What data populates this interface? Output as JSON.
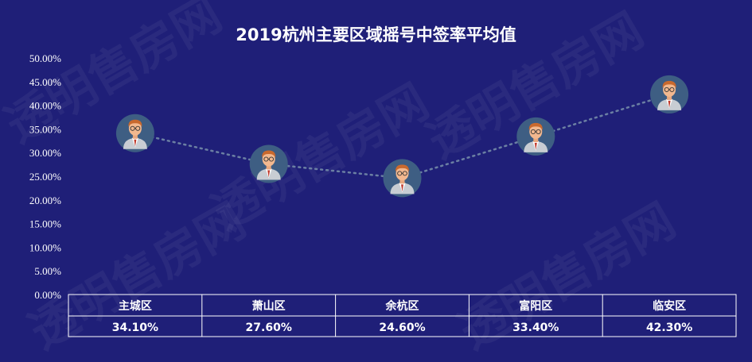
{
  "watermark": "透明售房网",
  "colors": {
    "background": "#1f1f78",
    "text": "#ffffff",
    "line": "#6b7fa3",
    "marker_bg": "#3e5e83"
  },
  "chart_data": {
    "type": "line",
    "title": "2019杭州主要区域摇号中签率平均值",
    "categories": [
      "主城区",
      "萧山区",
      "余杭区",
      "富阳区",
      "临安区"
    ],
    "values": [
      34.1,
      27.6,
      24.6,
      33.4,
      42.3
    ],
    "value_labels": [
      "34.10%",
      "27.60%",
      "24.60%",
      "33.40%",
      "42.30%"
    ],
    "ylim": [
      0,
      50
    ],
    "yticks": [
      "0.00%",
      "5.00%",
      "10.00%",
      "15.00%",
      "20.00%",
      "25.00%",
      "30.00%",
      "35.00%",
      "40.00%",
      "45.00%",
      "50.00%"
    ],
    "marker": "person-avatar-icon",
    "line_style": "dotted",
    "grid": false,
    "legend": "none"
  }
}
